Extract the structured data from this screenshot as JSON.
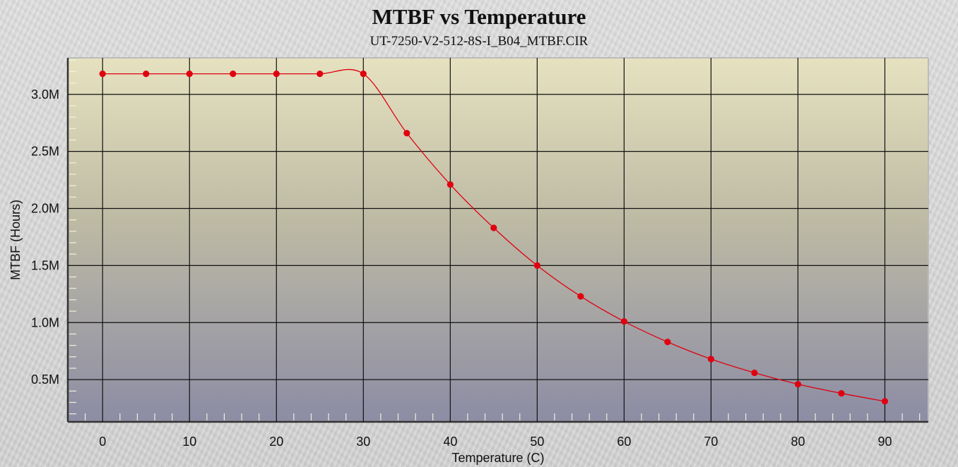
{
  "chart_data": {
    "type": "line",
    "title": "MTBF vs Temperature",
    "subtitle": "UT-7250-V2-512-8S-I_B04_MTBF.CIR",
    "xlabel": "Temperature (C)",
    "ylabel": "MTBF (Hours)",
    "xlim": [
      -4,
      95
    ],
    "ylim": [
      0.13,
      3.32
    ],
    "x_ticks": [
      0,
      10,
      20,
      30,
      40,
      50,
      60,
      70,
      80,
      90
    ],
    "x_tick_labels": [
      "0",
      "10",
      "20",
      "30",
      "40",
      "50",
      "60",
      "70",
      "80",
      "90"
    ],
    "y_ticks": [
      0.5,
      1.0,
      1.5,
      2.0,
      2.5,
      3.0
    ],
    "y_tick_labels": [
      "0.5M",
      "1.0M",
      "1.5M",
      "2.0M",
      "2.5M",
      "3.0M"
    ],
    "y_unit": "millions of hours",
    "grid": true,
    "series": [
      {
        "color": "#e00010",
        "x": [
          0,
          5,
          10,
          15,
          20,
          25,
          30,
          35,
          40,
          45,
          50,
          55,
          60,
          65,
          70,
          75,
          80,
          85,
          90
        ],
        "y": [
          3.18,
          3.18,
          3.18,
          3.18,
          3.18,
          3.18,
          3.18,
          2.66,
          2.21,
          1.83,
          1.5,
          1.23,
          1.01,
          0.83,
          0.68,
          0.56,
          0.46,
          0.38,
          0.31
        ]
      }
    ]
  }
}
